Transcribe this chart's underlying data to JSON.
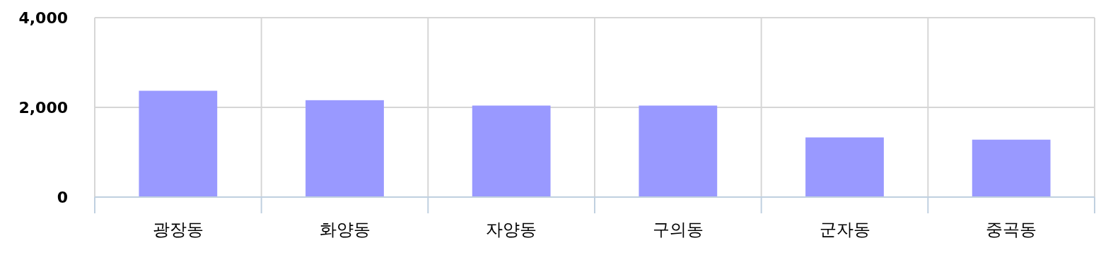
{
  "chart_data": {
    "type": "bar",
    "categories": [
      "광장동",
      "화양동",
      "자양동",
      "구의동",
      "군자동",
      "중곡동"
    ],
    "values": [
      2370,
      2160,
      2040,
      2040,
      1330,
      1280
    ],
    "color": "#9999ff",
    "ylim": [
      0,
      4000
    ],
    "yticks": [
      {
        "value": 0,
        "label": "0"
      },
      {
        "value": 2000,
        "label": "2,000"
      },
      {
        "value": 4000,
        "label": "4,000"
      }
    ],
    "grid": true
  }
}
